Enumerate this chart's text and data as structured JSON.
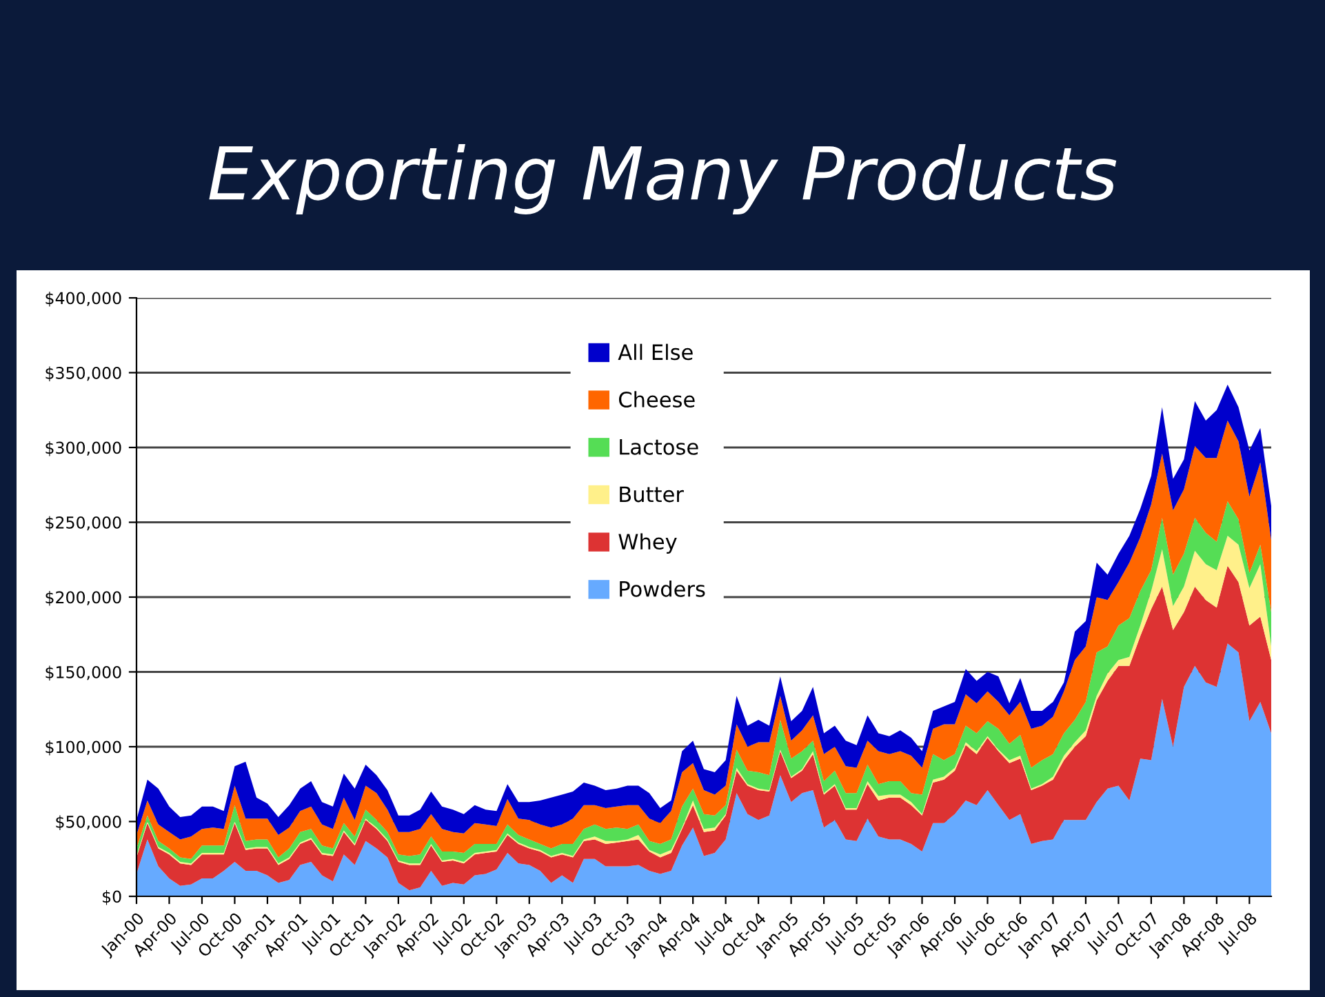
{
  "chart_data": {
    "type": "area",
    "stacked": true,
    "title": "Exporting Many Products",
    "categories": [
      "Jan-00",
      null,
      null,
      "Apr-00",
      null,
      null,
      "Jul-00",
      null,
      null,
      "Oct-00",
      null,
      null,
      "Jan-01",
      null,
      null,
      "Apr-01",
      null,
      null,
      "Jul-01",
      null,
      null,
      "Oct-01",
      null,
      null,
      "Jan-02",
      null,
      null,
      "Apr-02",
      null,
      null,
      "Jul-02",
      null,
      null,
      "Oct-02",
      null,
      null,
      "Jan-03",
      null,
      null,
      "Apr-03",
      null,
      null,
      "Jul-03",
      null,
      null,
      "Oct-03",
      null,
      null,
      "Jan-04",
      null,
      null,
      "Apr-04",
      null,
      null,
      "Jul-04",
      null,
      null,
      "Oct-04",
      null,
      null,
      "Jan-05",
      null,
      null,
      "Apr-05",
      null,
      null,
      "Jul-05",
      null,
      null,
      "Oct-05",
      null,
      null,
      "Jan-06",
      null,
      null,
      "Apr-06",
      null,
      null,
      "Jul-06",
      null,
      null,
      "Oct-06",
      null,
      null,
      "Jan-07",
      null,
      null,
      "Apr-07",
      null,
      null,
      "Jul-07",
      null,
      null,
      "Oct-07",
      null,
      null,
      "Jan-08",
      null,
      null,
      "Apr-08",
      null,
      null,
      "Jul-08",
      null,
      null
    ],
    "series": [
      {
        "name": "Powders",
        "color": "#66aaff",
        "values": [
          15000,
          38000,
          20000,
          12000,
          7000,
          8000,
          12000,
          12000,
          17000,
          23000,
          17000,
          17000,
          14000,
          9000,
          11000,
          21000,
          23000,
          14000,
          10000,
          28000,
          21000,
          37000,
          32000,
          26000,
          9000,
          4000,
          6000,
          17000,
          7000,
          9000,
          8000,
          14000,
          15000,
          18000,
          29000,
          22000,
          21000,
          17000,
          9000,
          14000,
          9000,
          25000,
          25000,
          20000,
          20000,
          20000,
          21000,
          17000,
          15000,
          17000,
          34000,
          46000,
          27000,
          29000,
          38000,
          69000,
          55000,
          51000,
          54000,
          81000,
          63000,
          69000,
          71000,
          46000,
          51000,
          38000,
          37000,
          52000,
          40000,
          38000,
          38000,
          35000,
          30000,
          49000,
          49000,
          55000,
          64000,
          61000,
          71000,
          61000,
          51000,
          55000,
          35000,
          37000,
          38000,
          51000,
          51000,
          51000,
          63000,
          72000,
          74000,
          64000,
          92000,
          91000,
          132000,
          100000,
          140000,
          154000,
          143000,
          140000,
          169000,
          163000,
          117000,
          130000,
          109000
        ]
      },
      {
        "name": "Whey",
        "color": "#dd3333",
        "values": [
          11000,
          11000,
          12000,
          16000,
          15000,
          13000,
          16000,
          16000,
          11000,
          26000,
          14000,
          15000,
          18000,
          12000,
          14000,
          14000,
          15000,
          14000,
          17000,
          15000,
          13000,
          14000,
          13000,
          11000,
          14000,
          17000,
          15000,
          17000,
          16000,
          15000,
          14000,
          14000,
          14000,
          12000,
          12000,
          13000,
          11000,
          13000,
          17000,
          14000,
          17000,
          12000,
          13000,
          15000,
          16000,
          17000,
          17000,
          13000,
          11000,
          12000,
          11000,
          15000,
          16000,
          15000,
          16000,
          15000,
          19000,
          20000,
          16000,
          16000,
          16000,
          15000,
          24000,
          22000,
          23000,
          20000,
          21000,
          23000,
          24000,
          28000,
          28000,
          26000,
          24000,
          27000,
          29000,
          29000,
          37000,
          34000,
          35000,
          36000,
          38000,
          37000,
          36000,
          37000,
          40000,
          40000,
          49000,
          56000,
          68000,
          72000,
          80000,
          90000,
          82000,
          101000,
          75000,
          78000,
          50000,
          53000,
          55000,
          53000,
          52000,
          47000,
          64000,
          57000,
          49000
        ]
      },
      {
        "name": "Butter",
        "color": "#fff08a",
        "values": [
          1000,
          1000,
          1000,
          1000,
          1000,
          1000,
          1000,
          1000,
          1000,
          1000,
          1000,
          1000,
          1000,
          1000,
          1000,
          1000,
          1000,
          1000,
          1000,
          1000,
          1000,
          1000,
          1000,
          1000,
          1000,
          1000,
          1000,
          1000,
          1000,
          1000,
          1000,
          1000,
          1000,
          1000,
          1000,
          1000,
          1000,
          1000,
          1000,
          1000,
          1000,
          1000,
          2000,
          2000,
          1000,
          1000,
          3000,
          1000,
          2000,
          2000,
          1000,
          3000,
          2000,
          2000,
          1000,
          2000,
          1000,
          1000,
          1000,
          1000,
          1000,
          1000,
          2000,
          1000,
          1000,
          1000,
          1000,
          2000,
          3000,
          2000,
          2000,
          2000,
          1000,
          2000,
          2000,
          2000,
          2000,
          2000,
          1000,
          1000,
          2000,
          2000,
          1000,
          1000,
          2000,
          3000,
          3000,
          4000,
          3000,
          5000,
          4000,
          6000,
          7000,
          12000,
          25000,
          16000,
          17000,
          24000,
          24000,
          25000,
          20000,
          25000,
          25000,
          35000,
          9000
        ]
      },
      {
        "name": "Lactose",
        "color": "#55dd55",
        "values": [
          5000,
          4000,
          4000,
          3000,
          3000,
          3000,
          5000,
          5000,
          5000,
          11000,
          5000,
          5000,
          5000,
          4000,
          6000,
          7000,
          6000,
          5000,
          4000,
          5000,
          5000,
          6000,
          5000,
          5000,
          4000,
          5000,
          6000,
          5000,
          6000,
          5000,
          6000,
          6000,
          5000,
          4000,
          6000,
          5000,
          5000,
          4000,
          5000,
          6000,
          8000,
          7000,
          8000,
          8000,
          9000,
          7000,
          7000,
          6000,
          7000,
          7000,
          14000,
          8000,
          10000,
          8000,
          6000,
          12000,
          9000,
          11000,
          10000,
          20000,
          12000,
          12000,
          7000,
          8000,
          9000,
          10000,
          10000,
          11000,
          8000,
          9000,
          9000,
          6000,
          13000,
          17000,
          11000,
          9000,
          11000,
          12000,
          10000,
          14000,
          11000,
          14000,
          14000,
          16000,
          15000,
          15000,
          15000,
          19000,
          29000,
          18000,
          23000,
          26000,
          23000,
          14000,
          21000,
          21000,
          22000,
          22000,
          21000,
          19000,
          23000,
          17000,
          10000,
          13000,
          23000
        ]
      },
      {
        "name": "Cheese",
        "color": "#ff6600",
        "values": [
          9000,
          10000,
          11000,
          11000,
          12000,
          15000,
          11000,
          12000,
          11000,
          13000,
          15000,
          14000,
          14000,
          15000,
          14000,
          14000,
          15000,
          14000,
          13000,
          17000,
          11000,
          16000,
          18000,
          15000,
          15000,
          16000,
          17000,
          15000,
          15000,
          13000,
          13000,
          14000,
          13000,
          12000,
          17000,
          11000,
          13000,
          13000,
          14000,
          13000,
          17000,
          16000,
          13000,
          14000,
          14000,
          16000,
          13000,
          15000,
          14000,
          19000,
          23000,
          17000,
          16000,
          14000,
          13000,
          17000,
          16000,
          20000,
          22000,
          16000,
          12000,
          14000,
          17000,
          18000,
          16000,
          18000,
          17000,
          16000,
          22000,
          18000,
          20000,
          25000,
          18000,
          17000,
          24000,
          20000,
          21000,
          20000,
          20000,
          18000,
          19000,
          22000,
          26000,
          23000,
          25000,
          28000,
          40000,
          37000,
          37000,
          31000,
          29000,
          37000,
          36000,
          44000,
          43000,
          43000,
          43000,
          48000,
          50000,
          56000,
          54000,
          52000,
          51000,
          55000,
          48000
        ]
      },
      {
        "name": "All Else",
        "color": "#0000cc",
        "values": [
          10000,
          14000,
          24000,
          17000,
          15000,
          14000,
          15000,
          14000,
          12000,
          13000,
          38000,
          14000,
          10000,
          12000,
          15000,
          15000,
          17000,
          15000,
          15000,
          16000,
          21000,
          14000,
          12000,
          13000,
          11000,
          11000,
          13000,
          15000,
          15000,
          15000,
          13000,
          12000,
          10000,
          10000,
          10000,
          11000,
          12000,
          16000,
          20000,
          20000,
          18000,
          15000,
          13000,
          12000,
          12000,
          13000,
          13000,
          17000,
          10000,
          7000,
          14000,
          15000,
          14000,
          15000,
          17000,
          19000,
          14000,
          15000,
          11000,
          13000,
          13000,
          13000,
          19000,
          14000,
          14000,
          17000,
          15000,
          17000,
          12000,
          12000,
          14000,
          12000,
          11000,
          12000,
          12000,
          15000,
          17000,
          15000,
          13000,
          17000,
          8000,
          16000,
          12000,
          10000,
          10000,
          6000,
          19000,
          17000,
          23000,
          17000,
          19000,
          18000,
          19000,
          19000,
          31000,
          21000,
          20000,
          30000,
          25000,
          32000,
          24000,
          23000,
          31000,
          23000,
          23000
        ]
      }
    ],
    "ylim": [
      0,
      400000
    ],
    "yticks": [
      {
        "value": 0,
        "label": "$0"
      },
      {
        "value": 50000,
        "label": "$50,000"
      },
      {
        "value": 100000,
        "label": "$100,000"
      },
      {
        "value": 150000,
        "label": "$150,000"
      },
      {
        "value": 200000,
        "label": "$200,000"
      },
      {
        "value": 250000,
        "label": "$250,000"
      },
      {
        "value": 300000,
        "label": "$300,000"
      },
      {
        "value": 350000,
        "label": "$350,000"
      },
      {
        "value": 400000,
        "label": "$400,000"
      }
    ],
    "grid": "y",
    "legend": "top"
  }
}
